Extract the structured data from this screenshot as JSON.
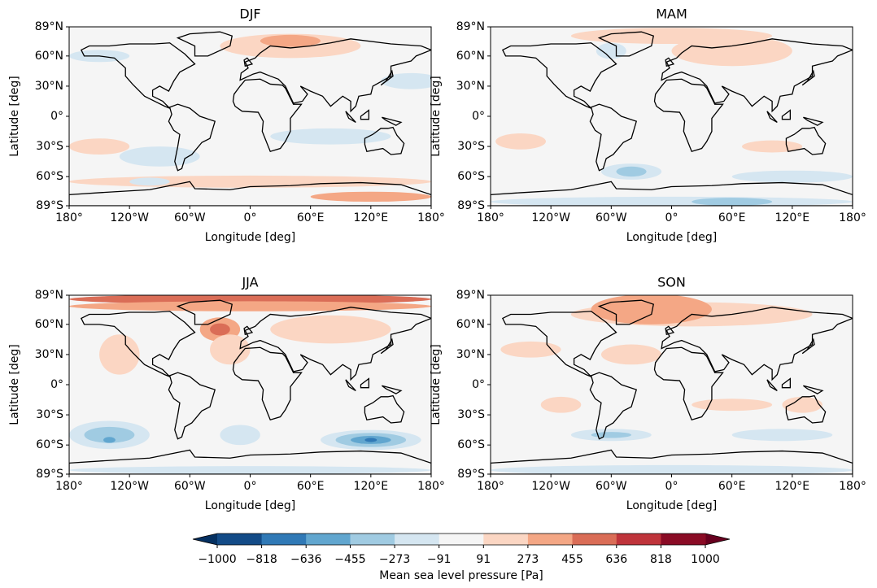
{
  "figure": {
    "panels": [
      {
        "title": "DJF"
      },
      {
        "title": "MAM"
      },
      {
        "title": "JJA"
      },
      {
        "title": "SON"
      }
    ],
    "axes": {
      "xlabel": "Longitude [deg]",
      "ylabel": "Latitude [deg]",
      "xlim": [
        -180,
        180
      ],
      "ylim": [
        -89,
        89
      ],
      "xticks": [
        {
          "value": -180,
          "label": "180°"
        },
        {
          "value": -120,
          "label": "120°W"
        },
        {
          "value": -60,
          "label": "60°W"
        },
        {
          "value": 0,
          "label": "0°"
        },
        {
          "value": 60,
          "label": "60°E"
        },
        {
          "value": 120,
          "label": "120°E"
        },
        {
          "value": 180,
          "label": "180°"
        }
      ],
      "yticks": [
        {
          "value": 89,
          "label": "89°N"
        },
        {
          "value": 60,
          "label": "60°N"
        },
        {
          "value": 30,
          "label": "30°N"
        },
        {
          "value": 0,
          "label": "0°"
        },
        {
          "value": -30,
          "label": "30°S"
        },
        {
          "value": -60,
          "label": "60°S"
        },
        {
          "value": -89,
          "label": "89°S"
        }
      ]
    },
    "colorbar": {
      "label": "Mean sea level pressure [Pa]",
      "levels": [
        {
          "value": -1000,
          "label": "−1000"
        },
        {
          "value": -818,
          "label": "−818"
        },
        {
          "value": -636,
          "label": "−636"
        },
        {
          "value": -455,
          "label": "−455"
        },
        {
          "value": -273,
          "label": "−273"
        },
        {
          "value": -91,
          "label": "−91"
        },
        {
          "value": 91,
          "label": "91"
        },
        {
          "value": 273,
          "label": "273"
        },
        {
          "value": 455,
          "label": "455"
        },
        {
          "value": 636,
          "label": "636"
        },
        {
          "value": 818,
          "label": "818"
        },
        {
          "value": 1000,
          "label": "1000"
        }
      ],
      "colors": [
        "#134b87",
        "#3079b6",
        "#61a6cf",
        "#a0cbe2",
        "#d5e6f1",
        "#f5f5f5",
        "#fbd6c3",
        "#f4a785",
        "#da6d57",
        "#bf343b",
        "#8a0b25"
      ],
      "under_color": "#053061",
      "over_color": "#67001f"
    }
  }
}
